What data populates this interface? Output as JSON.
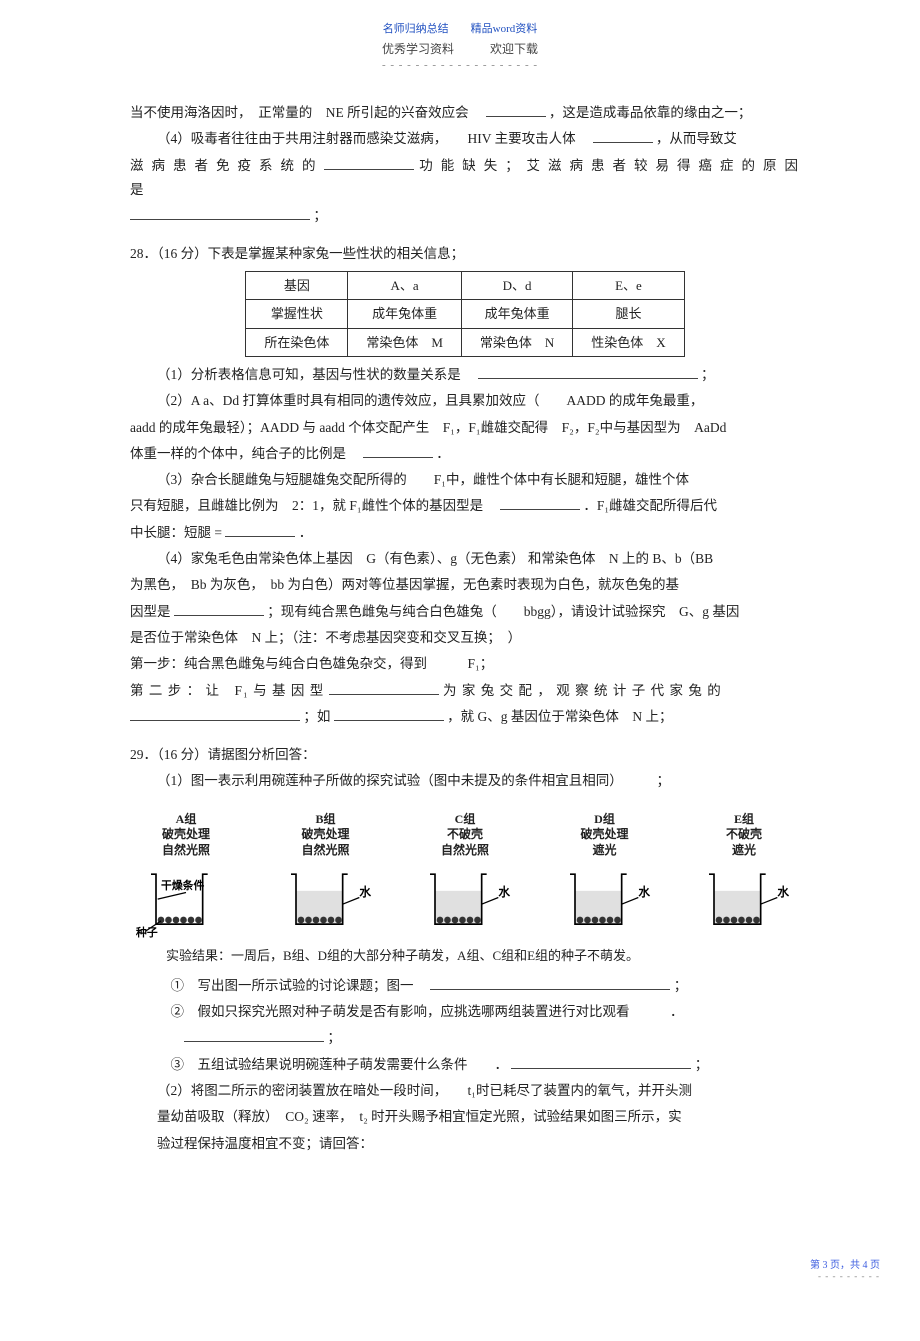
{
  "header": {
    "top": "名师归纳总结　　精品word资料",
    "sub": "优秀学习资料　　　欢迎下载",
    "dashes": "- - - - - - - - - - - - - - - - - - -"
  },
  "p27": {
    "line1_a": "当不使用海洛因时，　正常量的　NE 所引起的兴奋效应会　",
    "line1_b": "，这是造成毒品依靠的缘由之一；",
    "line2_a": "（4）吸毒者往往由于共用注射器而感染艾滋病，　　HIV 主要攻击人体　",
    "line2_b": "，从而导致艾",
    "line3_a": "滋 病 患 者 免 疫 系 统 的",
    "line3_b": "功 能 缺 失 ； 艾 滋 病 患 者 较 易 得 癌 症 的 原 因 是",
    "line4_b": "；"
  },
  "p28": {
    "title": "28．（16 分）下表是掌握某种家兔一些性状的相关信息；",
    "table": {
      "rows": [
        [
          "基因",
          "A、a",
          "D、d",
          "E、e"
        ],
        [
          "掌握性状",
          "成年兔体重",
          "成年兔体重",
          "腿长"
        ],
        [
          "所在染色体",
          "常染色体　M",
          "常染色体　N",
          "性染色体　X"
        ]
      ]
    },
    "l1": "（1）分析表格信息可知，基因与性状的数量关系是　",
    "l1b": "；",
    "l2": "（2）A a、Dd 打算体重时具有相同的遗传效应，且具累加效应（　　AADD 的成年兔最重，",
    "l3": "aadd 的成年兔最轻）；AADD 与 aadd 个体交配产生　F₁，F₁雌雄交配得　F₂，F₂中与基因型为　AaDd",
    "l4": "体重一样的个体中，纯合子的比例是　",
    "l4b": "．",
    "l5": "（3）杂合长腿雌兔与短腿雄兔交配所得的　　F₁中，雌性个体中有长腿和短腿，雄性个体",
    "l6a": "只有短腿，且雌雄比例为　2：1，就 F₁雌性个体的基因型是　",
    "l6b": "．F₁雌雄交配所得后代",
    "l7a": "中长腿：短腿 =",
    "l7b": "．",
    "l8": "（4）家兔毛色由常染色体上基因　G（有色素）、g（无色素） 和常染色体　N 上的 B、b（BB",
    "l9": "为黑色，　Bb 为灰色，　bb 为白色）两对等位基因掌握，无色素时表现为白色，就灰色兔的基",
    "l10a": "因型是",
    "l10b": "；现有纯合黑色雌兔与纯合白色雄兔（　　bbgg），请设计试验探究　G、g 基因",
    "l11": "是否位于常染色体　N 上；（注：不考虑基因突变和交叉互换；　）",
    "l12": "第一步：纯合黑色雌兔与纯合白色雄兔杂交，得到　　　F₁；",
    "l13a": "第 二 步 ： 让　F₁ 与 基 因 型",
    "l13b": "为 家 兔 交 配 ， 观 察 统 计 子 代 家 兔 的",
    "l14a": "",
    "l14b": "；如",
    "l14c": "，就 G、g 基因位于常染色体　N 上；"
  },
  "p29": {
    "title": "29．（16 分）请据图分析回答：",
    "l1": "（1）图一表示利用碗莲种子所做的探究试验（图中未提及的条件相宜且相同）　　　；",
    "groups": [
      {
        "name": "A组",
        "cond1": "破壳处理",
        "cond2": "自然光照",
        "has_water": false,
        "note_left": "干燥条件",
        "note_below": "种子"
      },
      {
        "name": "B组",
        "cond1": "破壳处理",
        "cond2": "自然光照",
        "has_water": true
      },
      {
        "name": "C组",
        "cond1": "不破壳",
        "cond2": "自然光照",
        "has_water": true
      },
      {
        "name": "D组",
        "cond1": "破壳处理",
        "cond2": "遮光",
        "has_water": true
      },
      {
        "name": "E组",
        "cond1": "不破壳",
        "cond2": "遮光",
        "has_water": true
      }
    ],
    "result": "实验结果：一周后，B组、D组的大部分种子萌发，A组、C组和E组的种子不萌发。",
    "q1": "①　写出图一所示试验的讨论课题；图一　",
    "q1b": "；",
    "q2": "②　假如只探究光照对种子萌发是否有影响，应挑选哪两组装置进行对比观看　　　．",
    "q2b": "；",
    "q3": "③　五组试验结果说明碗莲种子萌发需要什么条件　　．",
    "q3b": "；",
    "l2": "（2）将图二所示的密闭装置放在暗处一段时间，　　t₁时已耗尽了装置内的氧气，并开头测",
    "l3": "量幼苗吸取（释放）　CO₂ 速率，　t₂ 时开头赐予相宜恒定光照，试验结果如图三所示，实",
    "l4": "验过程保持温度相宜不变；请回答："
  },
  "footer": {
    "page": "第 3 页，共 4 页",
    "dashes": "- - - - - - - - -"
  }
}
